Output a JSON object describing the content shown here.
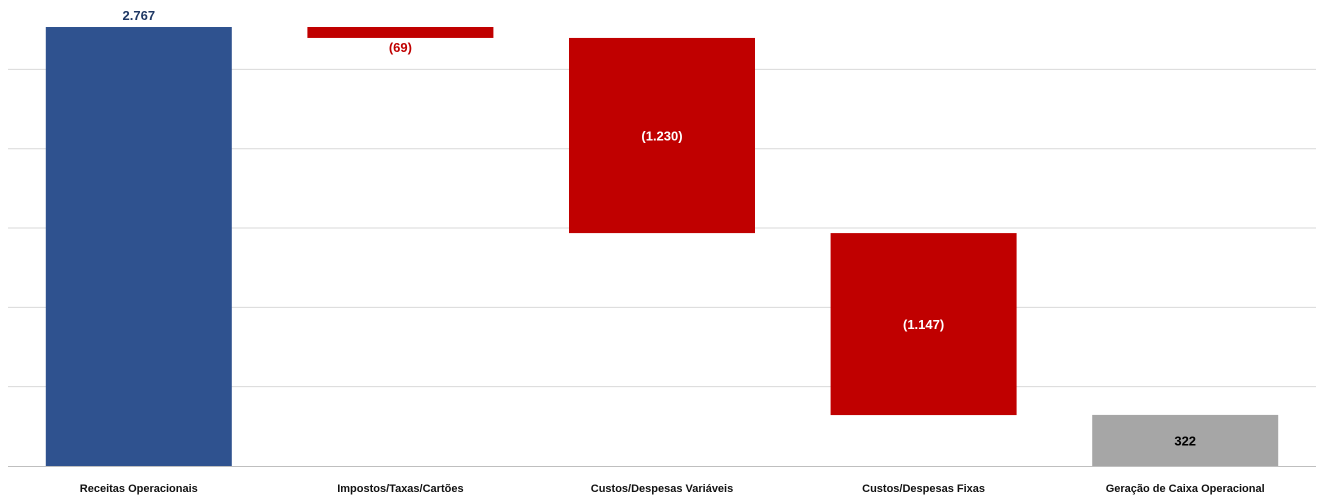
{
  "chart_data": {
    "type": "bar",
    "categories": [
      "Receitas Operacionais",
      "Impostos/Taxas/Cartões",
      "Custos/Despesas Variáveis",
      "Custos/Despesas Fixas",
      "Geração de Caixa Operacional"
    ],
    "values": [
      2767,
      -69,
      -1230,
      -1147,
      322
    ],
    "value_labels": [
      "2.767",
      "(69)",
      "(1.230)",
      "(1.147)",
      "322"
    ],
    "bar_kinds": [
      "total",
      "delta",
      "delta",
      "delta",
      "total"
    ],
    "colors": {
      "total_start": "#2F528F",
      "negative": "#C00000",
      "total_end": "#A6A6A6",
      "gridline": "#D9D9D9",
      "axis": "#BFBFBF",
      "label_start": "#1F3864",
      "label_negative": "#C00000",
      "label_inside": "#FFFFFF",
      "label_end": "#000000"
    },
    "ylim": [
      0,
      2800
    ],
    "grid": true,
    "gridline_values": [
      500,
      1000,
      1500,
      2000,
      2500
    ],
    "xlabel": "",
    "ylabel": ""
  }
}
